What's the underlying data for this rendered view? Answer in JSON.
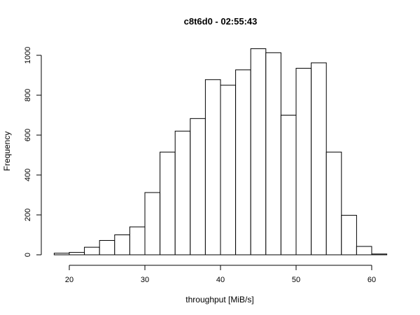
{
  "colors": {
    "bar_fill": "#ffffff",
    "bar_stroke": "#000000",
    "axis": "#000000",
    "background": "#ffffff"
  },
  "chart_data": {
    "type": "bar",
    "subtype": "histogram",
    "title": "c8t6d0 - 02:55:43",
    "xlabel": "throughput [MiB/s]",
    "ylabel": "Frequency",
    "xlim": [
      18,
      62
    ],
    "ylim": [
      0,
      1040
    ],
    "xticks": [
      20,
      30,
      40,
      50,
      60
    ],
    "yticks": [
      0,
      200,
      400,
      600,
      800,
      1000
    ],
    "bin_width": 2,
    "bins": [
      {
        "x0": 18,
        "x1": 20,
        "count": 8
      },
      {
        "x0": 20,
        "x1": 22,
        "count": 12
      },
      {
        "x0": 22,
        "x1": 24,
        "count": 38
      },
      {
        "x0": 24,
        "x1": 26,
        "count": 72
      },
      {
        "x0": 26,
        "x1": 28,
        "count": 100
      },
      {
        "x0": 28,
        "x1": 30,
        "count": 140
      },
      {
        "x0": 30,
        "x1": 32,
        "count": 312
      },
      {
        "x0": 32,
        "x1": 34,
        "count": 515
      },
      {
        "x0": 34,
        "x1": 36,
        "count": 620
      },
      {
        "x0": 36,
        "x1": 38,
        "count": 683
      },
      {
        "x0": 38,
        "x1": 40,
        "count": 878
      },
      {
        "x0": 40,
        "x1": 42,
        "count": 850
      },
      {
        "x0": 42,
        "x1": 44,
        "count": 927
      },
      {
        "x0": 44,
        "x1": 46,
        "count": 1033
      },
      {
        "x0": 46,
        "x1": 48,
        "count": 1013
      },
      {
        "x0": 48,
        "x1": 50,
        "count": 700
      },
      {
        "x0": 50,
        "x1": 52,
        "count": 935
      },
      {
        "x0": 52,
        "x1": 54,
        "count": 962
      },
      {
        "x0": 54,
        "x1": 56,
        "count": 515
      },
      {
        "x0": 56,
        "x1": 58,
        "count": 198
      },
      {
        "x0": 58,
        "x1": 60,
        "count": 42
      },
      {
        "x0": 60,
        "x1": 62,
        "count": 4
      }
    ],
    "grid": false,
    "legend": "none"
  }
}
